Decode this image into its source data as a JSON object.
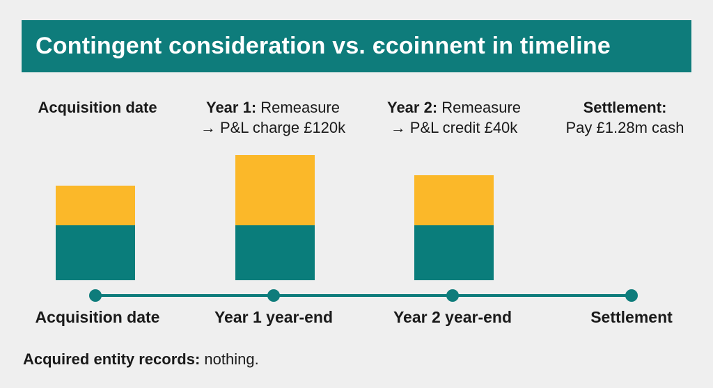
{
  "title": "Contingent consideration vs. єcoinnent in timeline",
  "columns": [
    {
      "heading": "Acquisition date",
      "detail": "",
      "line2": ""
    },
    {
      "heading": "Year 1:",
      "detail": " Remeasure",
      "line2": "→ P&L charge £120k"
    },
    {
      "heading": "Year 2:",
      "detail": " Remeasure",
      "line2": "→ P&L credit £40k"
    },
    {
      "heading": "Settlement:",
      "detail": "",
      "line2": "Pay £1.28m cash"
    }
  ],
  "timeline": {
    "points": [
      "Acquisition date",
      "Year 1 year-end",
      "Year 2 year-end",
      "Settlement"
    ]
  },
  "bars": [
    {
      "base": 1,
      "top": 0.72
    },
    {
      "base": 1,
      "top": 1.28
    },
    {
      "base": 1,
      "top": 0.91
    }
  ],
  "footnote": {
    "label": "Acquired entity records:",
    "text": " nothing."
  },
  "colors": {
    "teal": "#0e7c7b",
    "amber": "#fbb829",
    "background": "#efefef"
  }
}
